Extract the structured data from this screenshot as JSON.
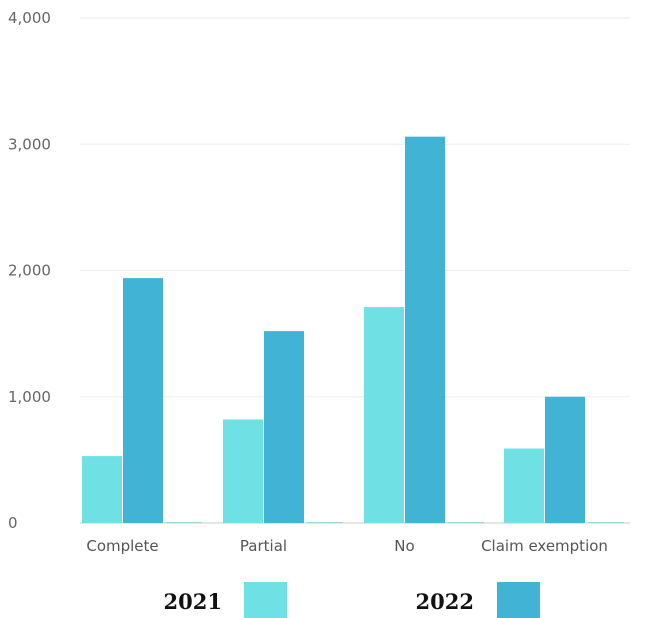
{
  "chart_data": {
    "type": "bar",
    "categories": [
      "Complete",
      "Partial",
      "No",
      "Claim exemption"
    ],
    "series": [
      {
        "name": "2021",
        "values": [
          530,
          820,
          1710,
          590
        ],
        "color": "#6fe0e3"
      },
      {
        "name": "2022",
        "values": [
          1940,
          1520,
          3060,
          1000
        ],
        "color": "#41b4d5"
      }
    ],
    "ylim": [
      0,
      4000
    ],
    "yticks": [
      0,
      1000,
      2000,
      3000,
      4000
    ],
    "ytick_labels": [
      "0",
      "1,000",
      "2,000",
      "3,000",
      "4,000"
    ],
    "grid": true,
    "legend_position": "bottom",
    "title": "",
    "xlabel": "",
    "ylabel": ""
  }
}
